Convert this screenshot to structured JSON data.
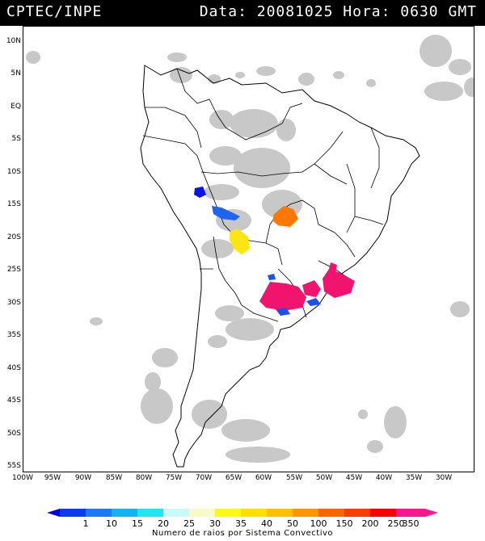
{
  "header": {
    "source": "CPTEC/INPE",
    "datetime": "Data: 20081025 Hora: 0630 GMT"
  },
  "axes": {
    "latitudes": [
      "10N",
      "5N",
      "EQ",
      "5S",
      "10S",
      "15S",
      "20S",
      "25S",
      "30S",
      "35S",
      "40S",
      "45S",
      "50S",
      "55S"
    ],
    "longitudes": [
      "100W",
      "95W",
      "90W",
      "85W",
      "80W",
      "75W",
      "70W",
      "65W",
      "60W",
      "55W",
      "50W",
      "45W",
      "40W",
      "35W",
      "30W"
    ]
  },
  "legend": {
    "title": "Numero de raios por Sistema Convectivo",
    "ticks": [
      "1",
      "10",
      "15",
      "20",
      "25",
      "30",
      "35",
      "40",
      "50",
      "100",
      "150",
      "200",
      "250",
      "350"
    ],
    "colors": [
      "#0000dd",
      "#0a3cf5",
      "#1e78ff",
      "#14b4f0",
      "#20e6f0",
      "#c8fafa",
      "#fafac8",
      "#fafa14",
      "#ffe000",
      "#ffc000",
      "#ff9600",
      "#ff6400",
      "#ff3c00",
      "#ff0000",
      "#ff1490"
    ]
  },
  "map": {
    "cloud_color": "#c8c8c8",
    "land_color": "#ffffff",
    "border_color": "#000000",
    "convective_systems": [
      {
        "name": "bolivia-north",
        "color": "#0a14e6"
      },
      {
        "name": "bolivia-center",
        "color": "#1e64f0"
      },
      {
        "name": "mato-grosso",
        "color": "#ff7800"
      },
      {
        "name": "paraguay-chaco",
        "color": "#fae614"
      },
      {
        "name": "argentina-ne",
        "color": "#f0146e"
      },
      {
        "name": "rio-grande-sul",
        "color": "#f0146e"
      },
      {
        "name": "parana",
        "color": "#f0146e"
      },
      {
        "name": "uruguay-blue",
        "color": "#1e50f0"
      }
    ]
  }
}
